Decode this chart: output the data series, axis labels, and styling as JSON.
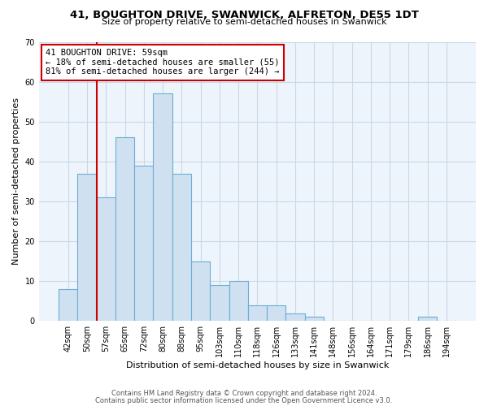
{
  "title": "41, BOUGHTON DRIVE, SWANWICK, ALFRETON, DE55 1DT",
  "subtitle": "Size of property relative to semi-detached houses in Swanwick",
  "xlabel": "Distribution of semi-detached houses by size in Swanwick",
  "ylabel": "Number of semi-detached properties",
  "bin_labels": [
    "42sqm",
    "50sqm",
    "57sqm",
    "65sqm",
    "72sqm",
    "80sqm",
    "88sqm",
    "95sqm",
    "103sqm",
    "110sqm",
    "118sqm",
    "126sqm",
    "133sqm",
    "141sqm",
    "148sqm",
    "156sqm",
    "164sqm",
    "171sqm",
    "179sqm",
    "186sqm",
    "194sqm"
  ],
  "bar_values": [
    8,
    37,
    31,
    46,
    39,
    57,
    37,
    15,
    9,
    10,
    4,
    4,
    2,
    1,
    0,
    0,
    0,
    0,
    0,
    1,
    0
  ],
  "bar_color": "#cfe0f0",
  "bar_edge_color": "#6aaed6",
  "vline_index": 2,
  "annotation_title": "41 BOUGHTON DRIVE: 59sqm",
  "annotation_line1": "← 18% of semi-detached houses are smaller (55)",
  "annotation_line2": "81% of semi-detached houses are larger (244) →",
  "annotation_box_color": "#ffffff",
  "annotation_box_edge": "#cc0000",
  "vline_color": "#cc0000",
  "ylim": [
    0,
    70
  ],
  "yticks": [
    0,
    10,
    20,
    30,
    40,
    50,
    60,
    70
  ],
  "footer_line1": "Contains HM Land Registry data © Crown copyright and database right 2024.",
  "footer_line2": "Contains public sector information licensed under the Open Government Licence v3.0.",
  "background_color": "#ffffff",
  "plot_background": "#eef4fb",
  "grid_color": "#c8d8e8",
  "title_fontsize": 9.5,
  "subtitle_fontsize": 8,
  "xlabel_fontsize": 8,
  "ylabel_fontsize": 8,
  "tick_fontsize": 7,
  "annot_fontsize": 7.5
}
